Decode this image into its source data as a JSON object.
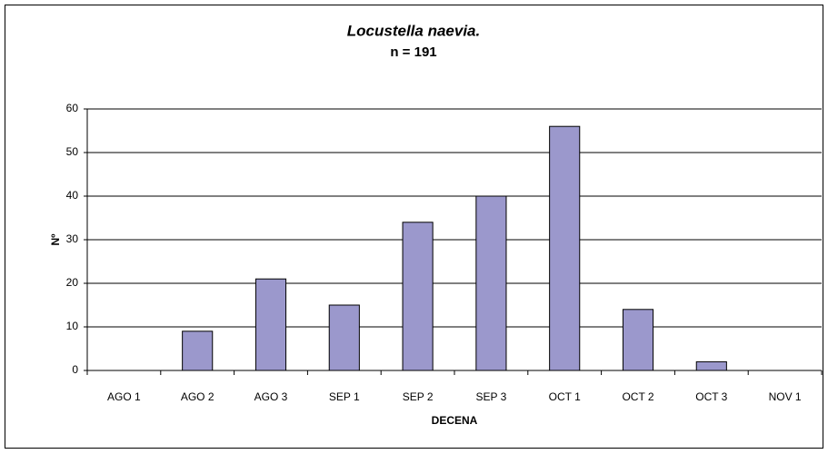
{
  "chart_data": {
    "type": "bar",
    "title": "Locustella naevia.",
    "subtitle": "n = 191",
    "x_label": "DECENA",
    "y_label": "Nº",
    "categories": [
      "AGO 1",
      "AGO 2",
      "AGO 3",
      "SEP 1",
      "SEP 2",
      "SEP 3",
      "OCT 1",
      "OCT 2",
      "OCT 3",
      "NOV 1"
    ],
    "values": [
      0,
      9,
      21,
      15,
      34,
      40,
      56,
      14,
      2,
      0
    ],
    "color": "#9b98cc",
    "ylim": [
      0,
      60
    ],
    "yticks": [
      0,
      10,
      20,
      30,
      40,
      50,
      60
    ],
    "grid": true
  }
}
